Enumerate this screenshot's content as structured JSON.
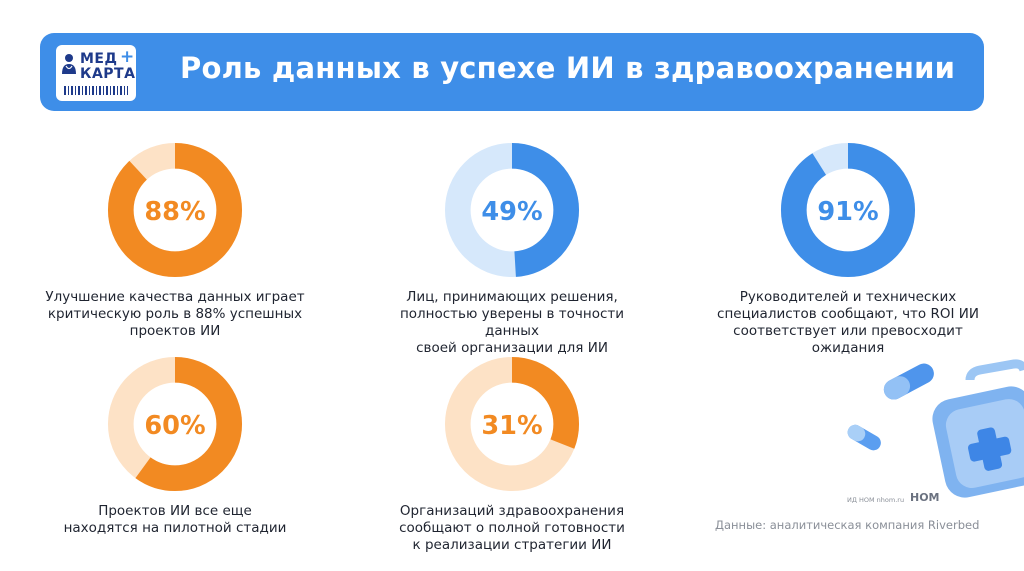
{
  "header": {
    "title": "Роль данных в успехе ИИ в здравоохранении",
    "logo": {
      "line1": "МЕД",
      "line2": "КАРТА",
      "cross": "+"
    }
  },
  "chart_data": [
    {
      "type": "pie",
      "value": 88,
      "remainder": 12,
      "label": "88%",
      "description": "Улучшение качества данных играет критическую роль в 88% успешных проектов ИИ",
      "color": "#f28a22",
      "track": "#fde2c6"
    },
    {
      "type": "pie",
      "value": 49,
      "remainder": 51,
      "label": "49%",
      "description": "Лиц, принимающих решения, полностью уверены в точности данных своей организации для ИИ",
      "color": "#3e8ee8",
      "track": "#d6e8fb"
    },
    {
      "type": "pie",
      "value": 91,
      "remainder": 9,
      "label": "91%",
      "description": "Руководителей и технических специалистов сообщают, что ROI ИИ соответствует или превосходит ожидания",
      "color": "#3e8ee8",
      "track": "#d6e8fb"
    },
    {
      "type": "pie",
      "value": 60,
      "remainder": 40,
      "label": "60%",
      "description": "Проектов ИИ все еще находятся на пилотной стадии",
      "color": "#f28a22",
      "track": "#fde2c6"
    },
    {
      "type": "pie",
      "value": 31,
      "remainder": 69,
      "label": "31%",
      "description": "Организаций здравоохранения сообщают о полной готовности к реализации стратегии ИИ",
      "color": "#f28a22",
      "track": "#fde2c6"
    }
  ],
  "stats": {
    "s1": {
      "line1": "Улучшение качества данных играет",
      "line2": "критическую роль в 88% успешных",
      "line3": "проектов ИИ"
    },
    "s2": {
      "line1": "Лиц, принимающих решения,",
      "line2": "полностью уверены в точности данных",
      "line3": "своей организации для ИИ"
    },
    "s3": {
      "line1": "Руководителей и технических",
      "line2": "специалистов сообщают, что ROI ИИ",
      "line3": "соответствует или превосходит ожидания"
    },
    "s4": {
      "line1": "Проектов ИИ все еще",
      "line2": "находятся на пилотной стадии"
    },
    "s5": {
      "line1": "Организаций здравоохранения",
      "line2": "сообщают о полной готовности",
      "line3": "к реализации стратегии ИИ"
    }
  },
  "footer": {
    "source": "Данные: аналитическая компания Riverbed",
    "credit": "ИД НОМ nhom.ru",
    "credit_logo": "НОМ"
  }
}
